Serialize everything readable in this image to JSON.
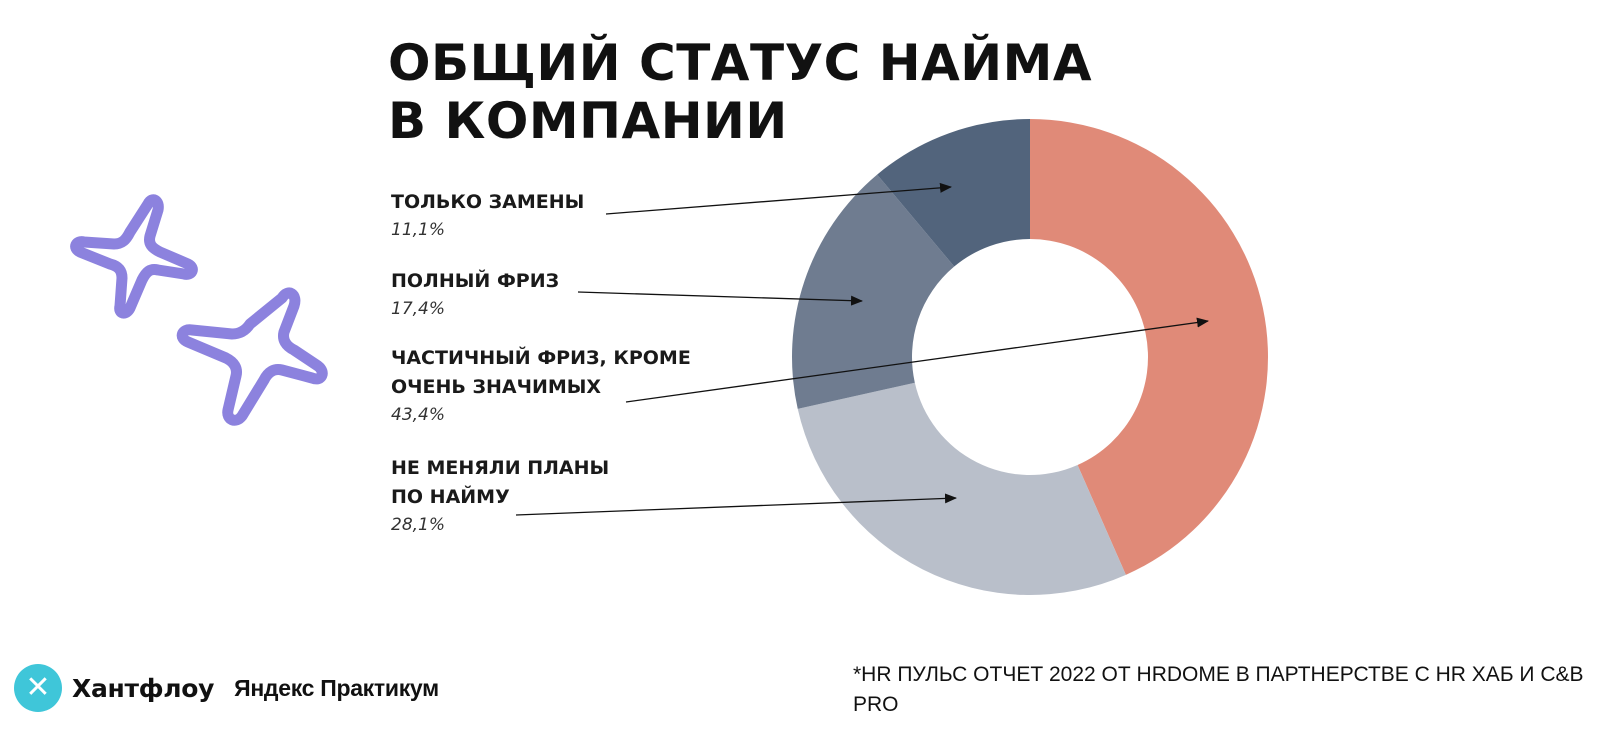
{
  "chart_data": {
    "type": "pie",
    "title_lines": [
      "ОБЩИЙ СТАТУС НАЙМА",
      "В КОМПАНИИ"
    ],
    "slices": [
      {
        "label": "ЧАСТИЧНЫЙ ФРИЗ, КРОМЕ\nОЧЕНЬ ЗНАЧИМЫХ",
        "value": 43.4,
        "value_text": "43,4%",
        "color": "#e08a78"
      },
      {
        "label": "НЕ МЕНЯЛИ ПЛАНЫ\nПО НАЙМУ",
        "value": 28.1,
        "value_text": "28,1%",
        "color": "#b9bfca"
      },
      {
        "label": "ПОЛНЫЙ ФРИЗ",
        "value": 17.4,
        "value_text": "17,4%",
        "color": "#6f7c90"
      },
      {
        "label": "ТОЛЬКО ЗАМЕНЫ",
        "value": 11.1,
        "value_text": "11,1%",
        "color": "#52647c"
      }
    ],
    "label_order": [
      3,
      2,
      0,
      1
    ],
    "donut": true,
    "legend": "left, arrows to slices"
  },
  "footer": {
    "logo_name": "Хантфлоу",
    "logo_partner": "Яндекс Практикум",
    "source": "*HR ПУЛЬС ОТЧЕТ 2022 ОТ HRDOME В ПАРТНЕРСТВЕ С HR ХАБ И C&B PRO"
  },
  "colors": {
    "accent_star": "#8c82de",
    "logo_circle": "#3fc6d9",
    "arrow": "#111111"
  },
  "icons": [
    "sparkle-star-icon",
    "hantflow-logo-icon"
  ]
}
